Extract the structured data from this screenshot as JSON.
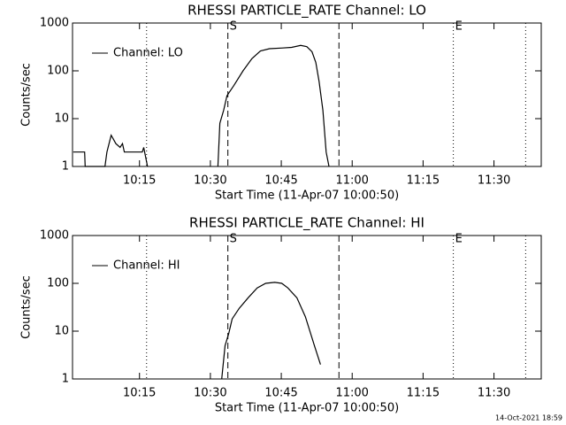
{
  "chart_data": [
    {
      "type": "line",
      "title": "RHESSI PARTICLE_RATE Channel: LO",
      "xlabel": "Start Time (11-Apr-07 10:00:50)",
      "ylabel": "Counts/sec",
      "x": [
        1.0,
        3.4,
        3.5,
        5.5,
        7.7,
        8.1,
        9.0,
        10.0,
        10.9,
        11.4,
        11.8,
        15.6,
        15.9,
        16.7,
        24,
        31.6,
        32,
        32.8,
        33.5,
        35,
        36.9,
        38.8,
        40.6,
        42.5,
        45.3,
        47.2,
        49.1,
        50.4,
        51.5,
        52.3,
        53,
        53.8,
        54.5,
        55.1
      ],
      "series": [
        {
          "name": "Channel: LO",
          "color": "#000000",
          "values": [
            2,
            2,
            1,
            1,
            1,
            2,
            4.5,
            3,
            2.5,
            3,
            2,
            2,
            2.5,
            1,
            null,
            1,
            8,
            15,
            30,
            50,
            100,
            180,
            260,
            290,
            300,
            310,
            340,
            320,
            250,
            150,
            60,
            15,
            2,
            1
          ]
        }
      ],
      "xlim": [
        0.83,
        100
      ],
      "xticks": [
        {
          "value": 15,
          "label": "10:15"
        },
        {
          "value": 30,
          "label": "10:30"
        },
        {
          "value": 45,
          "label": "10:45"
        },
        {
          "value": 60,
          "label": "11:00"
        },
        {
          "value": 75,
          "label": "11:15"
        },
        {
          "value": 90,
          "label": "11:30"
        }
      ],
      "ylim": [
        1,
        1000
      ],
      "yticks": [
        1,
        10,
        100,
        1000
      ],
      "yscale": "log",
      "markers": [
        {
          "x": 16.5,
          "style": "dotted"
        },
        {
          "x": 33.7,
          "style": "dashed",
          "label": "S"
        },
        {
          "x": 57.2,
          "style": "dashed"
        },
        {
          "x": 81.4,
          "style": "dotted",
          "label": "E"
        },
        {
          "x": 96.7,
          "style": "dotted"
        }
      ]
    },
    {
      "type": "line",
      "title": "RHESSI PARTICLE_RATE Channel: HI",
      "xlabel": "Start Time (11-Apr-07 10:00:50)",
      "ylabel": "Counts/sec",
      "x": [
        32.4,
        33.1,
        33.9,
        34.6,
        36.1,
        38,
        39.9,
        41.7,
        43.6,
        45.1,
        46.4,
        48.3,
        50.1,
        52,
        53.3
      ],
      "series": [
        {
          "name": "Channel: HI",
          "color": "#000000",
          "values": [
            1,
            5,
            9,
            18,
            30,
            50,
            80,
            100,
            105,
            100,
            80,
            50,
            20,
            5,
            2
          ]
        }
      ],
      "xlim": [
        0.83,
        100
      ],
      "xticks": [
        {
          "value": 15,
          "label": "10:15"
        },
        {
          "value": 30,
          "label": "10:30"
        },
        {
          "value": 45,
          "label": "10:45"
        },
        {
          "value": 60,
          "label": "11:00"
        },
        {
          "value": 75,
          "label": "11:15"
        },
        {
          "value": 90,
          "label": "11:30"
        }
      ],
      "ylim": [
        1,
        1000
      ],
      "yticks": [
        1,
        10,
        100,
        1000
      ],
      "yscale": "log",
      "markers": [
        {
          "x": 16.5,
          "style": "dotted"
        },
        {
          "x": 33.7,
          "style": "dashed",
          "label": "S"
        },
        {
          "x": 57.2,
          "style": "dashed"
        },
        {
          "x": 81.4,
          "style": "dotted",
          "label": "E"
        },
        {
          "x": 96.7,
          "style": "dotted"
        }
      ]
    }
  ],
  "footer": "14-Oct-2021 18:59"
}
